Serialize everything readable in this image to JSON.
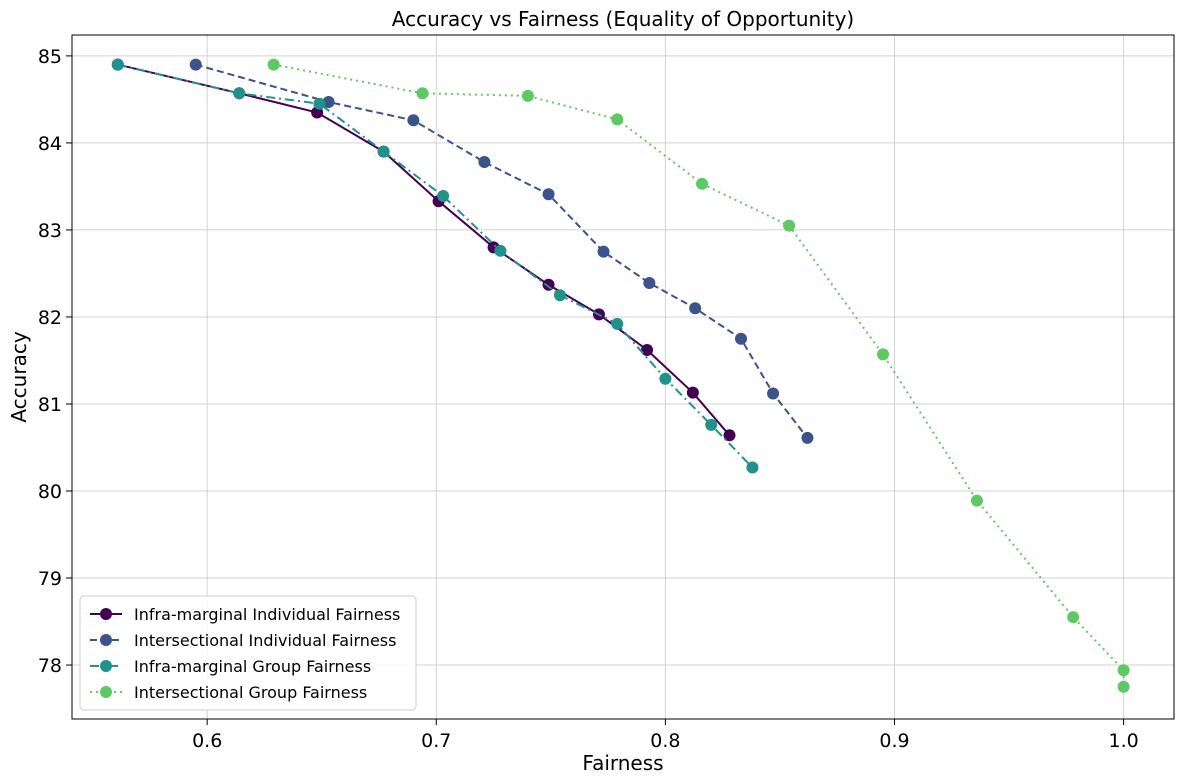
{
  "chart_data": {
    "type": "line",
    "title": "Accuracy vs Fairness (Equality of Opportunity)",
    "xlabel": "Fairness",
    "ylabel": "Accuracy",
    "xlim": [
      0.541,
      1.022
    ],
    "ylim": [
      77.38,
      85.24
    ],
    "xticks": [
      0.6,
      0.7,
      0.8,
      0.9,
      1.0
    ],
    "xtick_labels": [
      "0.6",
      "0.7",
      "0.8",
      "0.9",
      "1.0"
    ],
    "yticks": [
      78,
      79,
      80,
      81,
      82,
      83,
      84,
      85
    ],
    "ytick_labels": [
      "78",
      "79",
      "80",
      "81",
      "82",
      "83",
      "84",
      "85"
    ],
    "grid": true,
    "legend_position": "lower-left",
    "series": [
      {
        "name": "Infra-marginal Individual Fairness",
        "color": "#440154",
        "dash": "solid",
        "x": [
          0.561,
          0.614,
          0.648,
          0.677,
          0.701,
          0.725,
          0.749,
          0.771,
          0.792,
          0.812,
          0.828
        ],
        "y": [
          84.9,
          84.57,
          84.35,
          83.9,
          83.33,
          82.8,
          82.37,
          82.03,
          81.62,
          81.13,
          80.64
        ]
      },
      {
        "name": "Intersectional Individual Fairness",
        "color": "#3b528b",
        "dash": "dashed",
        "x": [
          0.595,
          0.653,
          0.69,
          0.721,
          0.749,
          0.773,
          0.793,
          0.813,
          0.833,
          0.847,
          0.862
        ],
        "y": [
          84.9,
          84.47,
          84.26,
          83.78,
          83.41,
          82.75,
          82.39,
          82.1,
          81.75,
          81.12,
          80.61
        ]
      },
      {
        "name": "Infra-marginal Group Fairness",
        "color": "#21918c",
        "dash": "dashdot",
        "x": [
          0.561,
          0.614,
          0.649,
          0.677,
          0.703,
          0.728,
          0.754,
          0.779,
          0.8,
          0.82,
          0.838
        ],
        "y": [
          84.9,
          84.57,
          84.45,
          83.9,
          83.39,
          82.76,
          82.25,
          81.92,
          81.29,
          80.76,
          80.27
        ]
      },
      {
        "name": "Intersectional Group Fairness",
        "color": "#5ec962",
        "dash": "dotted",
        "x": [
          0.629,
          0.694,
          0.74,
          0.779,
          0.816,
          0.854,
          0.895,
          0.936,
          0.978,
          1.0,
          1.0
        ],
        "y": [
          84.9,
          84.57,
          84.54,
          84.27,
          83.53,
          83.05,
          81.57,
          79.89,
          78.55,
          77.94,
          77.75
        ]
      }
    ]
  }
}
